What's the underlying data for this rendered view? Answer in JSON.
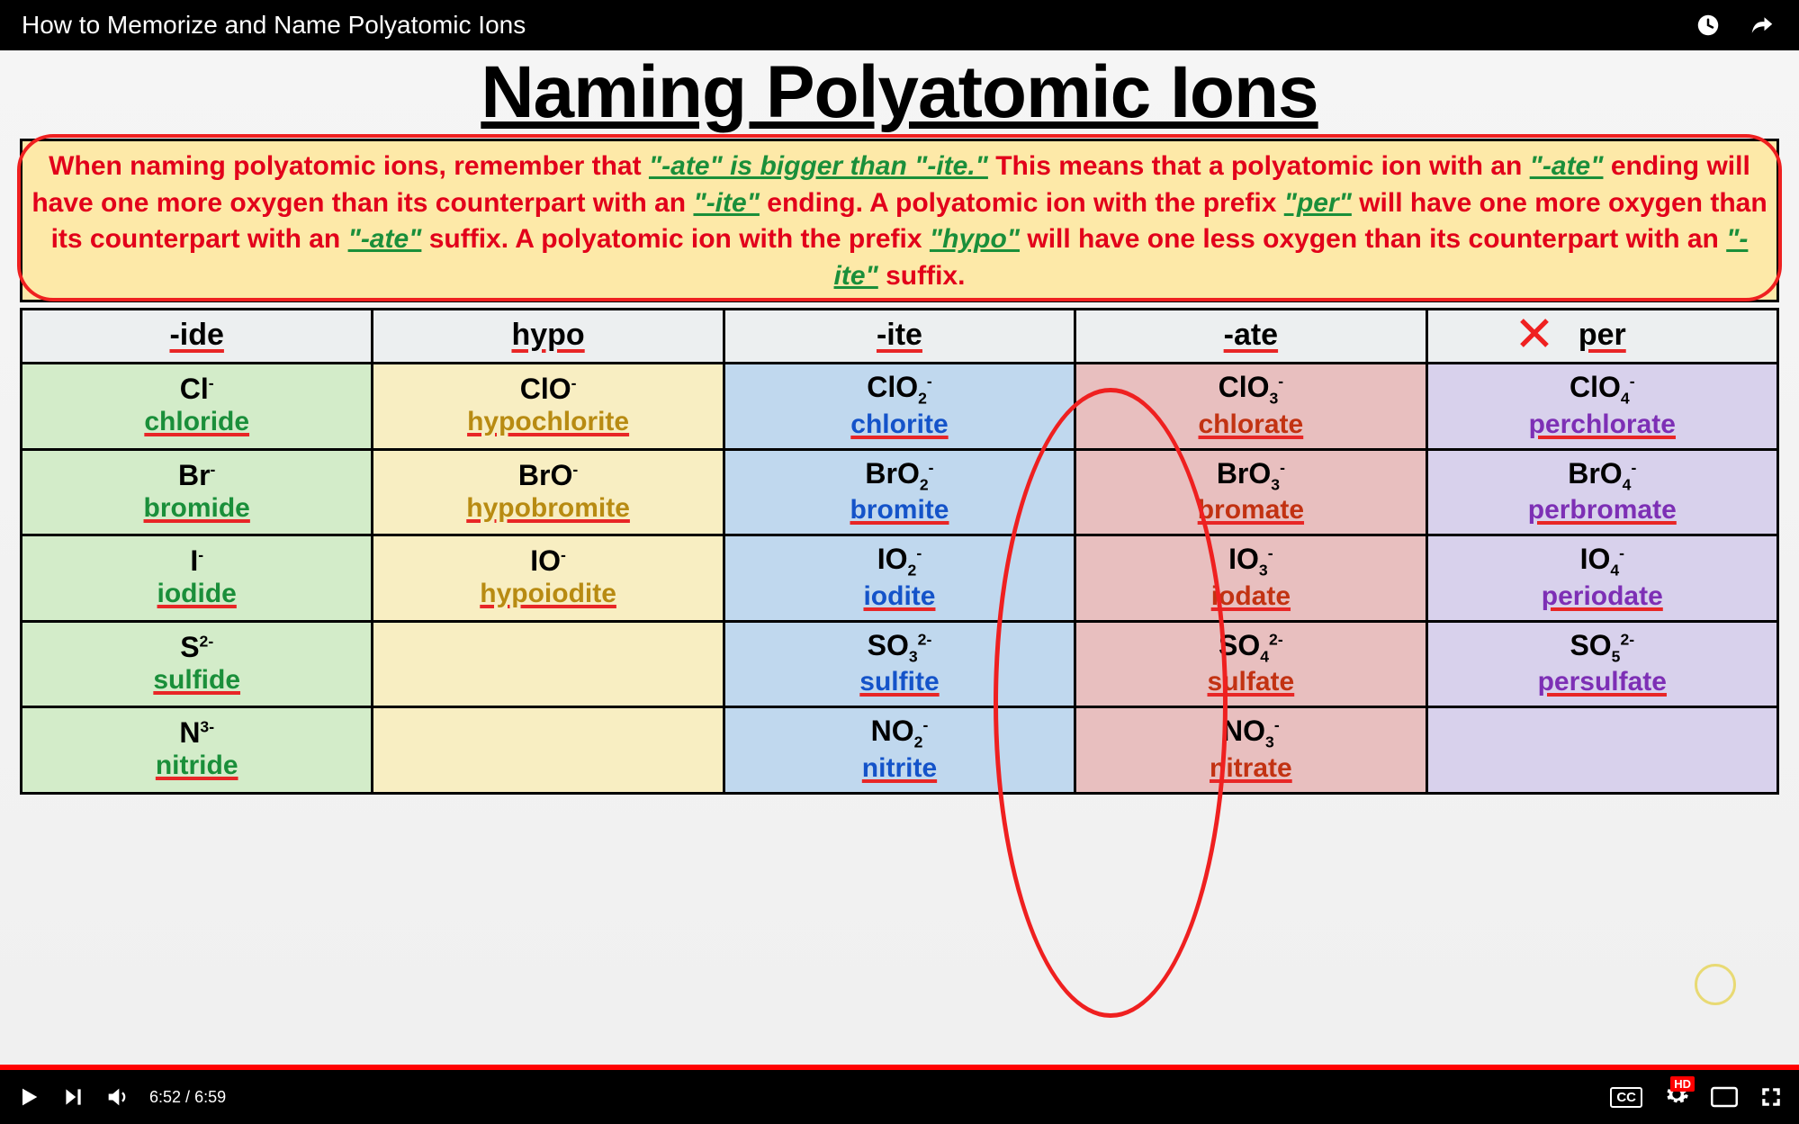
{
  "video_title": "How to Memorize and Name Polyatomic Ions",
  "main_title": "Naming Polyatomic Ions",
  "rule_box": {
    "bg": "#fde9a8",
    "text_color": "#e2001a",
    "quote_color": "#1a8f3a",
    "line1_a": "When naming polyatomic ions, remember that ",
    "line1_quote": "\"-ate\" is bigger than \"-ite.\"",
    "line1_b": " This means that a polyatomic ion with an ",
    "line1_c": "\"-ate\"",
    "line1_d": " ending will have one more oxygen than its counterpart with an ",
    "line1_e": "\"-ite\"",
    "line1_f": " ending.  A polyatomic ion with the prefix ",
    "line1_g": "\"per\"",
    "line1_h": " will have one more oxygen than its counterpart with an ",
    "line1_i": "\"-ate\"",
    "line1_j": " suffix. A polyatomic ion with the prefix ",
    "line1_k": "\"hypo\"",
    "line1_l": " will have one less oxygen than its counterpart with an ",
    "line1_m": "\"-ite\"",
    "line1_n": " suffix."
  },
  "columns": [
    {
      "key": "ide",
      "header": "-ide",
      "bg": "#d3ecc9",
      "text": "#1a8f3a"
    },
    {
      "key": "hypo",
      "header": "hypo",
      "bg": "#f8eec2",
      "text": "#b88b12"
    },
    {
      "key": "ite",
      "header": "-ite",
      "bg": "#c0d8ee",
      "text": "#1453c9"
    },
    {
      "key": "ate",
      "header": "-ate",
      "bg": "#e8bfbf",
      "text": "#c23212"
    },
    {
      "key": "per",
      "header": "per",
      "bg": "#d8d1ec",
      "text": "#7d2fb5"
    }
  ],
  "rows": [
    {
      "ide": {
        "f": "Cl⁻",
        "n": "chloride"
      },
      "hypo": {
        "f": "ClO⁻",
        "n": "hypochlorite"
      },
      "ite": {
        "f": "ClO₂⁻",
        "n": "chlorite"
      },
      "ate": {
        "f": "ClO₃⁻",
        "n": "chlorate"
      },
      "per": {
        "f": "ClO₄⁻",
        "n": "perchlorate"
      }
    },
    {
      "ide": {
        "f": "Br⁻",
        "n": "bromide"
      },
      "hypo": {
        "f": "BrO⁻",
        "n": "hypobromite"
      },
      "ite": {
        "f": "BrO₂⁻",
        "n": "bromite"
      },
      "ate": {
        "f": "BrO₃⁻",
        "n": "bromate"
      },
      "per": {
        "f": "BrO₄⁻",
        "n": "perbromate"
      }
    },
    {
      "ide": {
        "f": "I⁻",
        "n": "iodide"
      },
      "hypo": {
        "f": "IO⁻",
        "n": "hypoiodite"
      },
      "ite": {
        "f": "IO₂⁻",
        "n": "iodite"
      },
      "ate": {
        "f": "IO₃⁻",
        "n": "iodate"
      },
      "per": {
        "f": "IO₄⁻",
        "n": "periodate"
      }
    },
    {
      "ide": {
        "f": "S²⁻",
        "n": "sulfide"
      },
      "hypo": null,
      "ite": {
        "f": "SO₃²⁻",
        "n": "sulfite"
      },
      "ate": {
        "f": "SO₄²⁻",
        "n": "sulfate"
      },
      "per": {
        "f": "SO₅²⁻",
        "n": "persulfate"
      }
    },
    {
      "ide": {
        "f": "N³⁻",
        "n": "nitride"
      },
      "hypo": null,
      "ite": {
        "f": "NO₂⁻",
        "n": "nitrite"
      },
      "ate": {
        "f": "NO₃⁻",
        "n": "nitrate"
      },
      "per": null
    }
  ],
  "player": {
    "current_time": "6:52",
    "duration": "6:59",
    "progress_pct": 98.3,
    "cc_label": "CC"
  },
  "annotations": {
    "ate_column_circle_color": "#ef2020",
    "underline_color": "#e82626"
  }
}
